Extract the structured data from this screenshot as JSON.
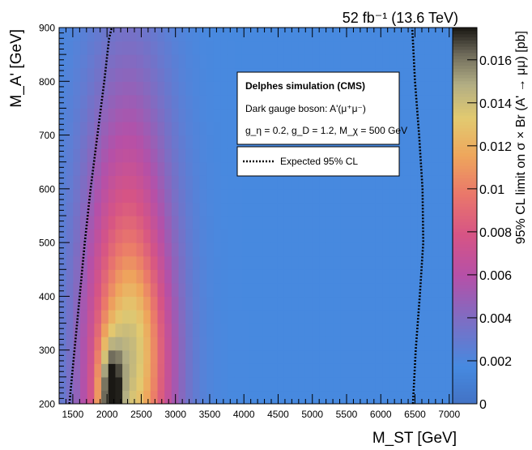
{
  "chart_data": {
    "type": "heatmap",
    "title": "",
    "lumi_label": "52 fb⁻¹ (13.6 TeV)",
    "xlabel": "M_ST [GeV]",
    "ylabel": "M_A' [GeV]",
    "zlabel": "95% CL limit on σ × Br (A' → μμ) [pb]",
    "xlim": [
      1300,
      7050
    ],
    "ylim": [
      200,
      900
    ],
    "zlim": [
      0,
      0.0175
    ],
    "x_ticks": [
      1500,
      2000,
      2500,
      3000,
      3500,
      4000,
      4500,
      5000,
      5500,
      6000,
      6500,
      7000
    ],
    "y_ticks": [
      200,
      300,
      400,
      500,
      600,
      700,
      800,
      900
    ],
    "z_ticks": [
      0,
      0.002,
      0.004,
      0.006,
      0.008,
      0.01,
      0.012,
      0.014,
      0.016
    ],
    "z_tick_labels": [
      "0",
      "0.002",
      "0.004",
      "0.006",
      "0.008",
      "0.01",
      "0.012",
      "0.014",
      "0.016"
    ],
    "colormap": "kBird (dark blue → purple → pink → orange → yellow → gray → black)",
    "background_value": 0.0018,
    "legend": {
      "header": "Delphes simulation (CMS)",
      "lines": [
        "Dark gauge boson: A'(μ⁺μ⁻)",
        "g_η = 0.2, g_D = 1.2, M_χ = 500 GeV"
      ],
      "entries": [
        {
          "label": "Expected 95% CL",
          "style": "dotted",
          "color": "#000000"
        }
      ]
    },
    "contour_left": {
      "name": "Expected 95% CL",
      "x": [
        1450,
        1525,
        1600,
        1675,
        1760,
        1860,
        1960,
        2030,
        2070
      ],
      "y": [
        200,
        300,
        400,
        500,
        600,
        700,
        800,
        880,
        900
      ]
    },
    "contour_right": {
      "name": "Expected 95% CL",
      "x": [
        6470,
        6510,
        6570,
        6620,
        6610,
        6560,
        6500,
        6460
      ],
      "y": [
        200,
        300,
        400,
        500,
        600,
        700,
        800,
        900
      ]
    },
    "peak": {
      "x": 2050,
      "y": 215,
      "value": 0.0175
    }
  }
}
